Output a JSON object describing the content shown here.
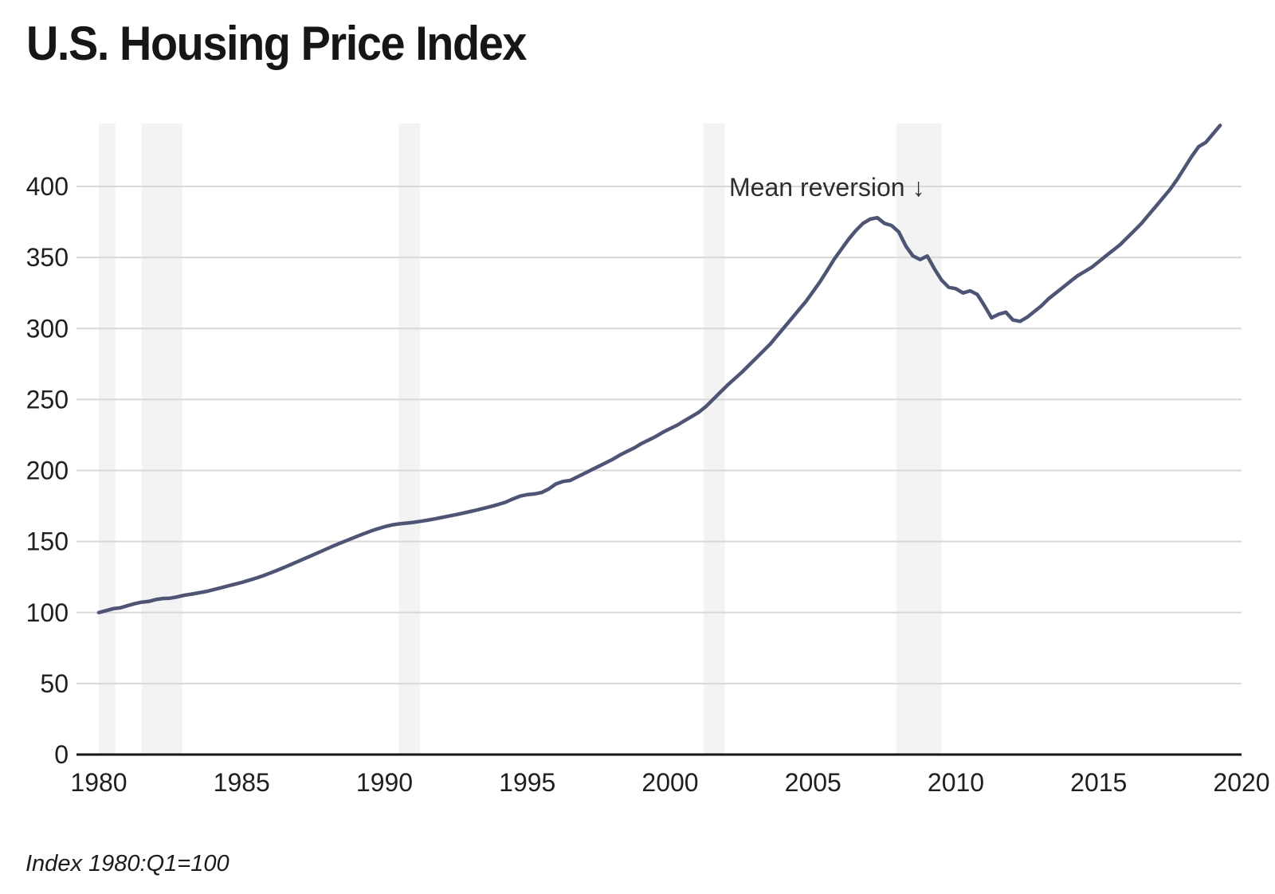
{
  "chart_data": {
    "type": "line",
    "title": "U.S. Housing Price Index",
    "footnote": "Index 1980:Q1=100",
    "annotation": {
      "text": "Mean reversion ↓",
      "year": 2002.06,
      "value": 393.8
    },
    "x": {
      "start_year": 1980,
      "frequency": "quarterly",
      "step_years": 0.25
    },
    "values": [
      100,
      101.3,
      102.7,
      103.3,
      104.8,
      106.2,
      107.3,
      107.8,
      109.2,
      109.9,
      110.1,
      111.0,
      112.2,
      113.0,
      113.9,
      114.8,
      116.0,
      117.3,
      118.6,
      119.9,
      121.2,
      122.7,
      124.2,
      125.9,
      127.8,
      129.8,
      131.9,
      134.0,
      136.2,
      138.4,
      140.6,
      142.8,
      145.0,
      147.2,
      149.3,
      151.3,
      153.3,
      155.3,
      157.2,
      158.9,
      160.4,
      161.6,
      162.4,
      162.9,
      163.5,
      164.2,
      165.0,
      165.9,
      166.9,
      167.9,
      168.9,
      170.0,
      171.1,
      172.3,
      173.5,
      174.8,
      176.2,
      177.8,
      180.0,
      182.0,
      183.0,
      183.5,
      184.5,
      187.0,
      190.5,
      192.3,
      193.0,
      195.5,
      198.0,
      200.5,
      203.0,
      205.5,
      208.0,
      211.0,
      213.5,
      216.0,
      219.0,
      221.5,
      224.0,
      227.0,
      229.5,
      232.0,
      235.0,
      238.0,
      241.0,
      245.0,
      250.0,
      255.0,
      260.0,
      264.5,
      269.0,
      274.0,
      279.0,
      284.0,
      289.0,
      295.0,
      301.0,
      307.0,
      313.0,
      319.0,
      326.0,
      333.0,
      341.0,
      349.0,
      356.0,
      363.0,
      369.0,
      374.0,
      377.0,
      378.0,
      374.0,
      372.5,
      368.0,
      358.0,
      351.0,
      348.5,
      351.0,
      342.0,
      334.0,
      329.0,
      328.0,
      325.0,
      326.5,
      324.0,
      316.0,
      307.5,
      310.0,
      311.5,
      306.0,
      305.0,
      308.0,
      312.0,
      316.0,
      321.0,
      325.0,
      329.0,
      333.0,
      337.0,
      340.0,
      343.0,
      347.0,
      351.0,
      355.0,
      359.0,
      364.0,
      369.0,
      374.0,
      380.0,
      386.0,
      392.0,
      398.0,
      405.0,
      413.0,
      421.0,
      428.0,
      431.0,
      437.0,
      443.0
    ],
    "yticks": [
      0,
      50,
      100,
      150,
      200,
      250,
      300,
      350,
      400
    ],
    "xticks": [
      1980,
      1985,
      1990,
      1995,
      2000,
      2005,
      2010,
      2015,
      2020
    ],
    "ylim": [
      0,
      445
    ],
    "xlim": [
      1979.2,
      2020
    ],
    "grid": "horizontal",
    "legend": "none",
    "recessions": [
      {
        "start": 1980.0,
        "end": 1980.58
      },
      {
        "start": 1981.5,
        "end": 1982.92
      },
      {
        "start": 1990.5,
        "end": 1991.25
      },
      {
        "start": 2001.17,
        "end": 2001.92
      },
      {
        "start": 2007.92,
        "end": 2009.5
      }
    ],
    "colors": {
      "line": "#4e5574",
      "gridline": "#d8d8d8",
      "recession_band": "#f3f3f3",
      "axis": "#161616",
      "tick_label": "#1f1f1f",
      "annotation": "#2e2e2e",
      "title": "#161616",
      "background": "#ffffff"
    }
  }
}
